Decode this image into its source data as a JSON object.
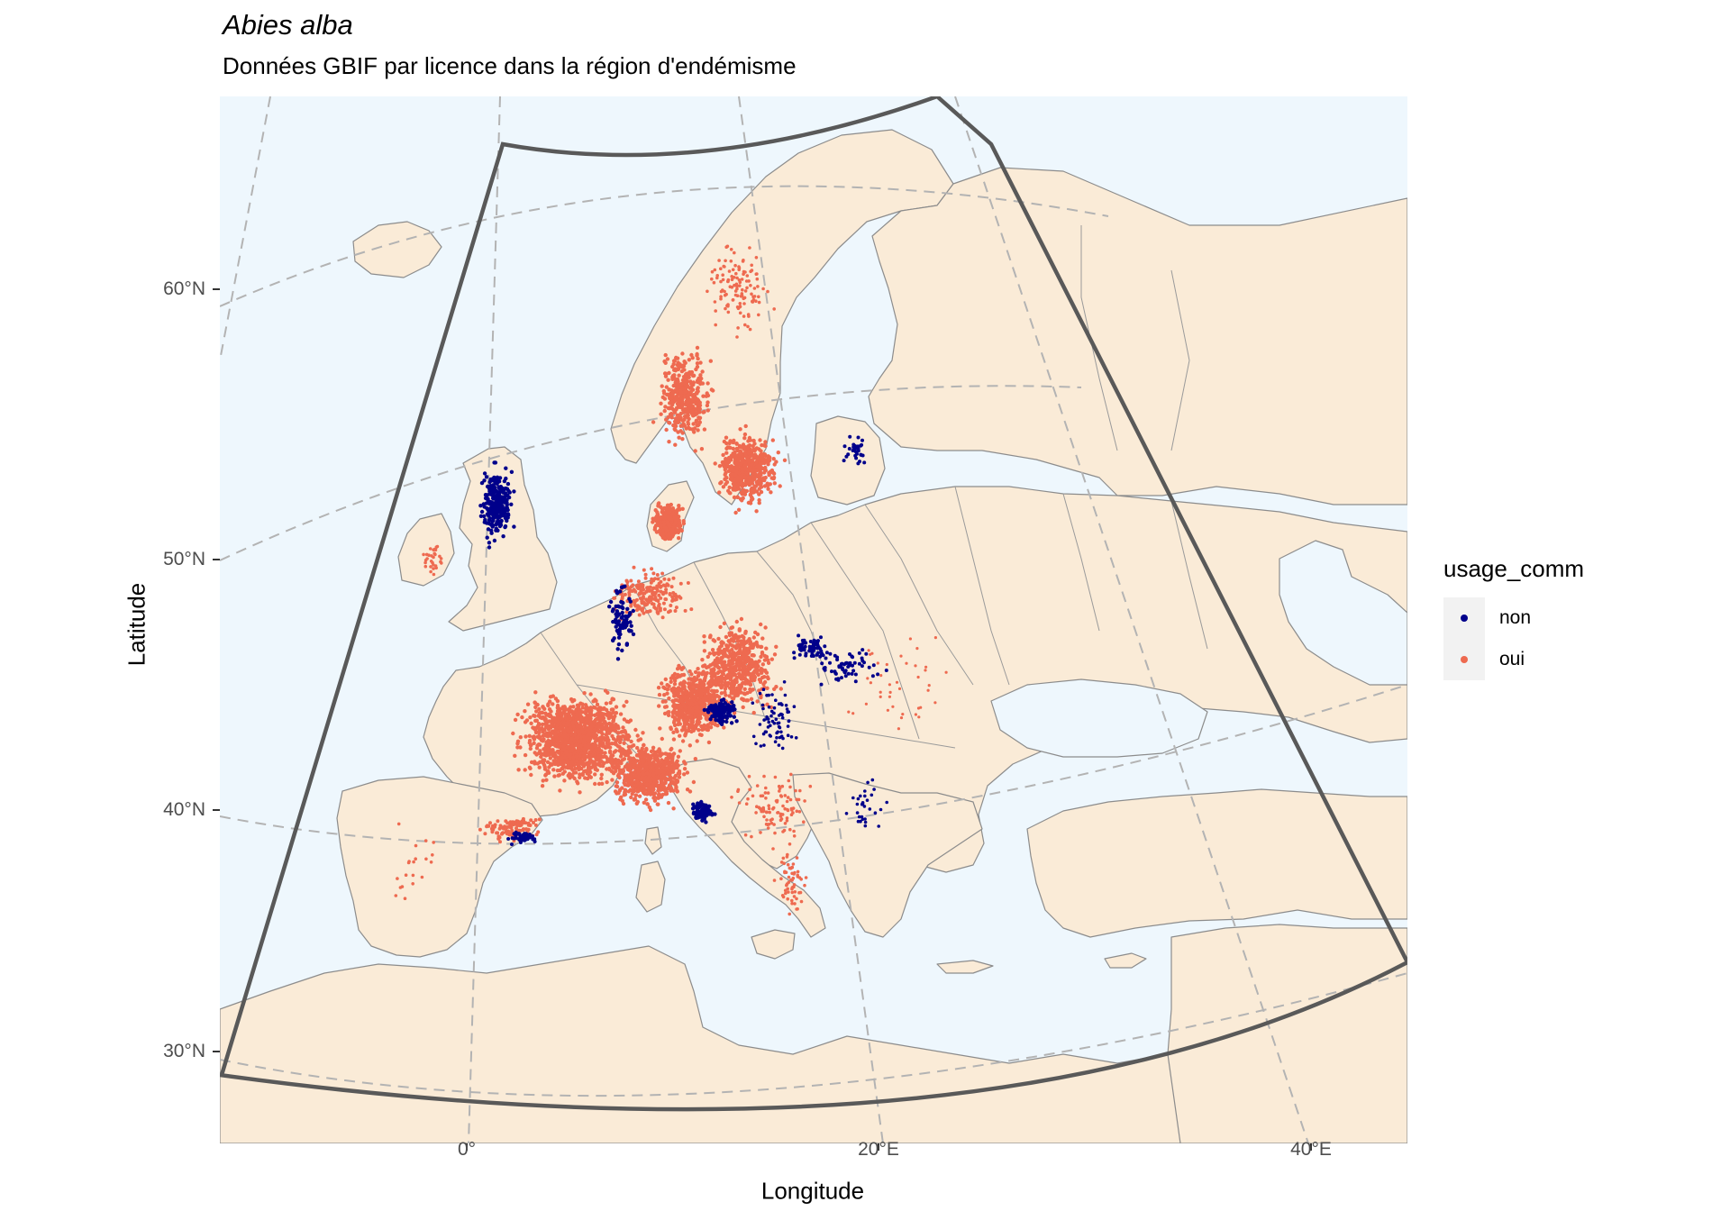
{
  "title": "Abies alba",
  "subtitle": "Données GBIF par licence dans la région d'endémisme",
  "axis": {
    "xlabel": "Longitude",
    "ylabel": "Latitude",
    "yticks": [
      {
        "label": "60°N",
        "lat": 60
      },
      {
        "label": "50°N",
        "lat": 50
      },
      {
        "label": "40°N",
        "lat": 40
      },
      {
        "label": "30°N",
        "lat": 30
      }
    ],
    "xticks": [
      {
        "label": "0°",
        "lon": 0
      },
      {
        "label": "20°E",
        "lon": 20
      },
      {
        "label": "40°E",
        "lon": 40
      }
    ]
  },
  "legend": {
    "title": "usage_comm",
    "items": [
      {
        "label": "non",
        "color": "#00008b"
      },
      {
        "label": "oui",
        "color": "#ee6a50"
      }
    ]
  },
  "colors": {
    "sea": "#eef7fd",
    "land": "#faebd7",
    "border": "#8c8c8c",
    "graticule": "#b3b3b3",
    "region_outline": "#595959"
  }
}
